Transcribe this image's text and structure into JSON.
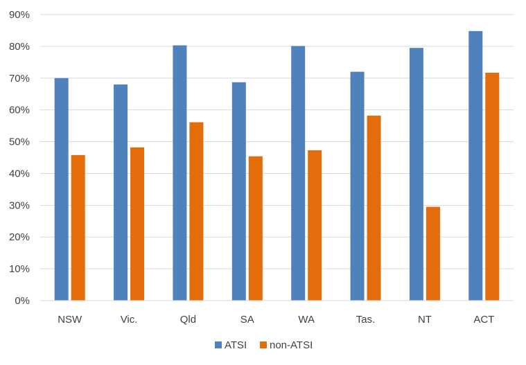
{
  "chart_data": {
    "type": "bar",
    "title": "",
    "xlabel": "",
    "ylabel": "",
    "categories": [
      "NSW",
      "Vic.",
      "Qld",
      "SA",
      "WA",
      "Tas.",
      "NT",
      "ACT"
    ],
    "series": [
      {
        "name": "ATSI",
        "color": "#4f81bd",
        "values": [
          70,
          68,
          80.3,
          68.7,
          80.1,
          72,
          79.5,
          84.8
        ]
      },
      {
        "name": "non-ATSI",
        "color": "#e46c0a",
        "values": [
          45.8,
          48.2,
          56.1,
          45.4,
          47.3,
          58.2,
          29.5,
          71.7
        ]
      }
    ],
    "ylim": [
      0,
      90
    ],
    "yticks": [
      0,
      10,
      20,
      30,
      40,
      50,
      60,
      70,
      80,
      90
    ],
    "ytick_format": "percent",
    "grid": true,
    "legend_position": "bottom"
  }
}
